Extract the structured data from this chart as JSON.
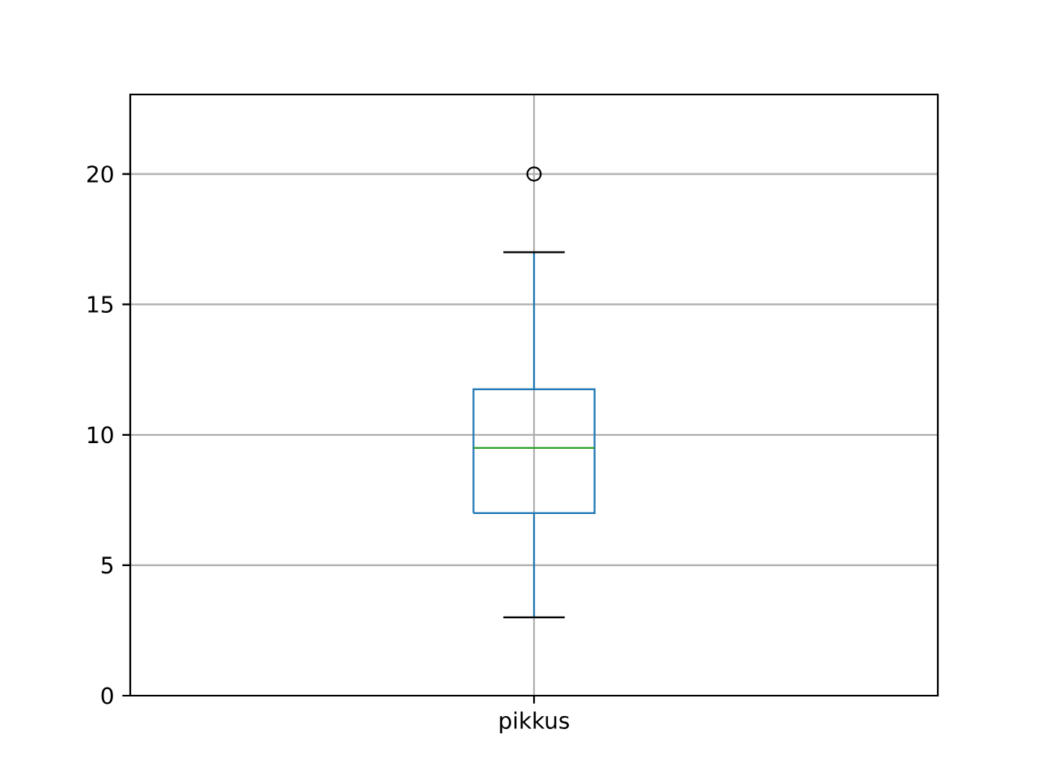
{
  "chart_data": {
    "type": "box",
    "categories": [
      "pikkus"
    ],
    "boxes": [
      {
        "low": 3,
        "q1": 7,
        "median": 9.5,
        "q3": 11.75,
        "high": 17,
        "outliers": [
          20
        ]
      }
    ],
    "color": "#1f77b4",
    "ylim": [
      0,
      23.05
    ],
    "yticks": [
      0,
      5,
      10,
      15,
      20
    ],
    "grid": true
  }
}
